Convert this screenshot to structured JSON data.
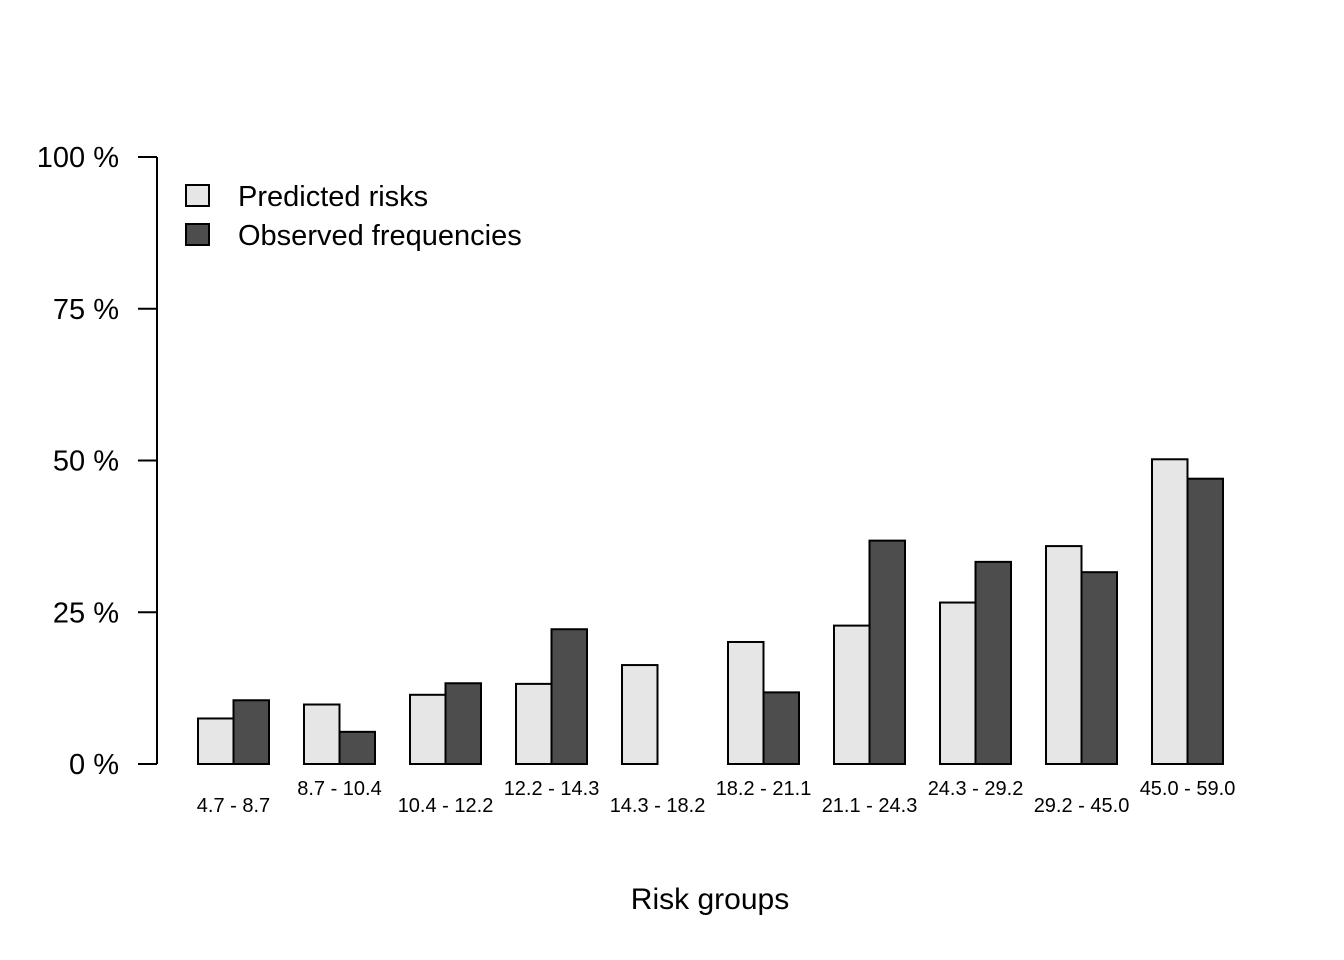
{
  "chart_data": {
    "type": "bar",
    "title": "",
    "xlabel": "Risk groups",
    "ylabel": "",
    "ylim": [
      0,
      100
    ],
    "y_ticks": [
      0,
      25,
      50,
      75,
      100
    ],
    "y_tick_labels": [
      "0 %",
      "25 %",
      "50 %",
      "75 %",
      "100 %"
    ],
    "categories": [
      "4.7 - 8.7",
      "8.7 - 10.4",
      "10.4 - 12.2",
      "12.2 - 14.3",
      "14.3 - 18.2",
      "18.2 - 21.1",
      "21.1 - 24.3",
      "24.3 - 29.2",
      "29.2 - 45.0",
      "45.0 - 59.0"
    ],
    "series": [
      {
        "name": "Predicted risks",
        "color": "#e6e6e6",
        "values": [
          7.5,
          9.8,
          11.4,
          13.2,
          16.3,
          20.1,
          22.8,
          26.6,
          35.9,
          50.2
        ]
      },
      {
        "name": "Observed frequencies",
        "color": "#4d4d4d",
        "values": [
          10.5,
          5.3,
          13.3,
          22.2,
          0,
          11.8,
          36.8,
          33.3,
          31.6,
          47.0
        ]
      }
    ],
    "legend_position": "top-left",
    "grid": false
  }
}
